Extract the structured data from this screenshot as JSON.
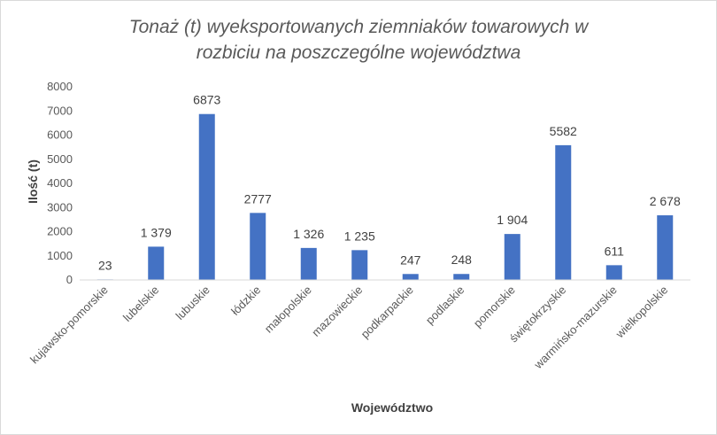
{
  "chart_data": {
    "type": "bar",
    "title_line1": "Tonaż (t) wyeksportowanych ziemniaków towarowych w",
    "title_line2": "rozbiciu na poszczególne województwa",
    "xlabel": "Województwo",
    "ylabel": "Ilość (t)",
    "ylim": [
      0,
      8000
    ],
    "yticks": [
      "0",
      "1000",
      "2000",
      "3000",
      "4000",
      "5000",
      "6000",
      "7000",
      "8000"
    ],
    "grid": false,
    "bar_color": "#4472c4",
    "categories": [
      "kujawsko-pomorskie",
      "lubelskie",
      "lubuskie",
      "łódzkie",
      "małopolskie",
      "mazowieckie",
      "podkarpackie",
      "podlaskie",
      "pomorskie",
      "świętokrzyskie",
      "warmińsko-mazurskie",
      "wielkopolskie"
    ],
    "values": [
      23,
      1379,
      6873,
      2777,
      1326,
      1235,
      247,
      248,
      1904,
      5582,
      611,
      2678
    ],
    "data_labels": [
      "23",
      "1 379",
      "6873",
      "2777",
      "1 326",
      "1 235",
      "247",
      "248",
      "1 904",
      "5582",
      "611",
      "2 678"
    ]
  }
}
